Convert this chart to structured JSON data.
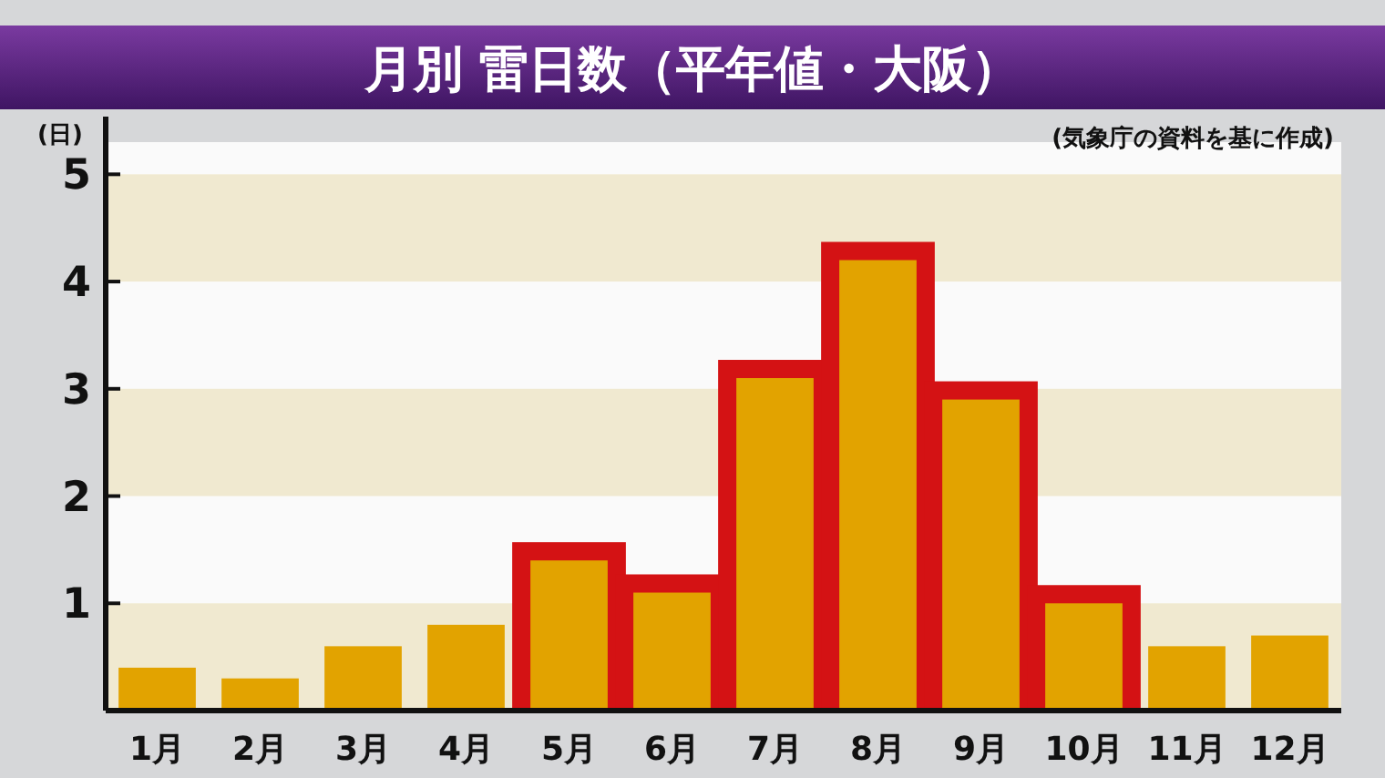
{
  "chart_data": {
    "type": "bar",
    "title": "月別 雷日数（平年値・大阪）",
    "ylabel": "(日)",
    "annotations": [
      "(気象庁の資料を基に作成)"
    ],
    "categories": [
      "1月",
      "2月",
      "3月",
      "4月",
      "5月",
      "6月",
      "7月",
      "8月",
      "9月",
      "10月",
      "11月",
      "12月"
    ],
    "series": [
      {
        "color": "#e2a300",
        "values": [
          0.4,
          0.3,
          0.6,
          0.8,
          1.4,
          1.1,
          3.1,
          4.2,
          2.9,
          1.0,
          0.6,
          0.7
        ]
      }
    ],
    "ylim": [
      0,
      5.3
    ],
    "yticks": [
      1,
      2,
      3,
      4,
      5
    ]
  }
}
